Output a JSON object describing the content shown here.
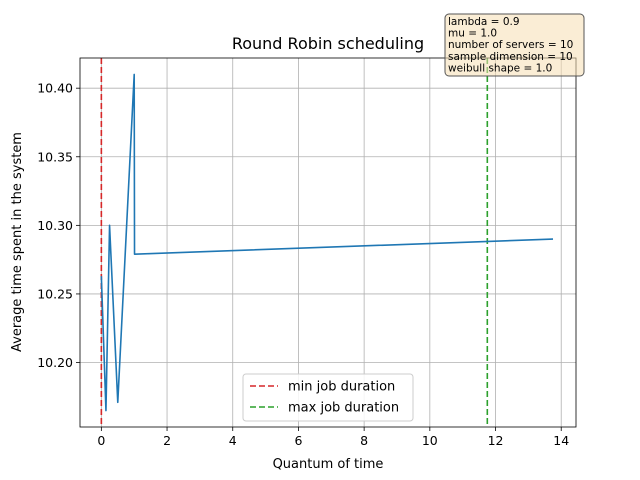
{
  "chart_data": {
    "type": "line",
    "title": "Round Robin scheduling",
    "xlabel": "Quantum of time",
    "ylabel": "Average time spent in the system",
    "xlim": [
      -0.65,
      14.45
    ],
    "ylim": [
      10.153,
      10.422
    ],
    "xticks": [
      0,
      2,
      4,
      6,
      8,
      10,
      12,
      14
    ],
    "xtick_labels": [
      "0",
      "2",
      "4",
      "6",
      "8",
      "10",
      "12",
      "14"
    ],
    "yticks": [
      10.2,
      10.25,
      10.3,
      10.35,
      10.4
    ],
    "ytick_labels": [
      "10.20",
      "10.25",
      "10.30",
      "10.35",
      "10.40"
    ],
    "grid": true,
    "legend_position": "lower-center",
    "series": [
      {
        "color": "#1f77b4",
        "x": [
          0.0,
          0.14,
          0.25,
          0.5,
          1.0,
          1.01,
          13.75
        ],
        "y": [
          10.263,
          10.165,
          10.3,
          10.171,
          10.41,
          10.279,
          10.29
        ]
      }
    ],
    "vlines": [
      {
        "name": "min job duration",
        "x": 0.0,
        "color": "#d62728",
        "style": "dashed"
      },
      {
        "name": "max job duration",
        "x": 11.75,
        "color": "#2ca02c",
        "style": "dashed"
      }
    ],
    "info_box": {
      "lines": [
        "lambda = 0.9",
        "mu = 1.0",
        "number of servers = 10",
        "sample dimension = 10",
        "weibull shape = 1.0"
      ],
      "background": "#f5deb3"
    }
  }
}
